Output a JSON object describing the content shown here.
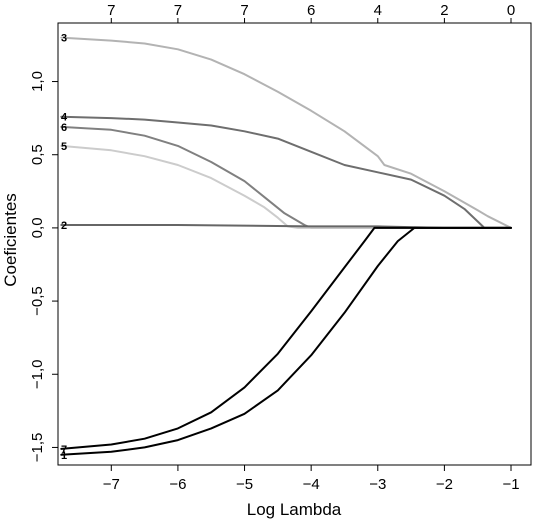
{
  "chart_data": {
    "type": "line",
    "title": "",
    "xlabel": "Log Lambda",
    "ylabel": "Coeficientes",
    "xlim": [
      -7.8,
      -0.7
    ],
    "ylim": [
      -1.62,
      1.4
    ],
    "x_ticks": [
      -7,
      -6,
      -5,
      -4,
      -3,
      -2,
      -1
    ],
    "x_tick_labels": [
      "−7",
      "−6",
      "−5",
      "−4",
      "−3",
      "−2",
      "−1"
    ],
    "y_ticks": [
      -1.5,
      -1.0,
      -0.5,
      0.0,
      0.5,
      1.0
    ],
    "y_tick_labels": [
      "−1,5",
      "−1,0",
      "−0,5",
      "0,0",
      "0,5",
      "1,0"
    ],
    "top_axis": {
      "ticks": [
        -7,
        -6,
        -5,
        -4,
        -3,
        -2,
        -1
      ],
      "labels": [
        "7",
        "7",
        "7",
        "6",
        "4",
        "2",
        "0"
      ]
    },
    "grid": false,
    "series": [
      {
        "name": "3",
        "color": "#b3b3b3",
        "x": [
          -7.75,
          -7.0,
          -6.5,
          -6.0,
          -5.5,
          -5.0,
          -4.5,
          -4.0,
          -3.5,
          -3.0,
          -2.9,
          -2.5,
          -2.0,
          -1.5,
          -1.35,
          -1.0
        ],
        "y": [
          1.3,
          1.28,
          1.26,
          1.22,
          1.15,
          1.05,
          0.93,
          0.8,
          0.66,
          0.49,
          0.43,
          0.37,
          0.25,
          0.12,
          0.08,
          0.0
        ]
      },
      {
        "name": "4",
        "color": "#6e6e6e",
        "x": [
          -7.75,
          -7.0,
          -6.5,
          -6.0,
          -5.5,
          -5.0,
          -4.5,
          -4.0,
          -3.5,
          -3.0,
          -2.5,
          -2.0,
          -1.7,
          -1.4,
          -1.0
        ],
        "y": [
          0.76,
          0.75,
          0.74,
          0.72,
          0.7,
          0.66,
          0.61,
          0.52,
          0.43,
          0.38,
          0.33,
          0.22,
          0.13,
          0.0,
          0.0
        ]
      },
      {
        "name": "6",
        "color": "#808080",
        "x": [
          -7.75,
          -7.0,
          -6.5,
          -6.0,
          -5.5,
          -5.0,
          -4.7,
          -4.4,
          -4.1,
          -4.0,
          -3.0,
          -2.0,
          -1.0
        ],
        "y": [
          0.69,
          0.67,
          0.63,
          0.56,
          0.45,
          0.32,
          0.21,
          0.1,
          0.02,
          0.0,
          0.0,
          0.0,
          0.0
        ]
      },
      {
        "name": "5",
        "color": "#cccccc",
        "x": [
          -7.75,
          -7.0,
          -6.5,
          -6.0,
          -5.5,
          -5.0,
          -4.7,
          -4.5,
          -4.35,
          -4.2,
          -3.0,
          -2.0,
          -1.0
        ],
        "y": [
          0.56,
          0.53,
          0.49,
          0.43,
          0.34,
          0.22,
          0.14,
          0.07,
          0.01,
          0.0,
          0.0,
          0.0,
          0.0
        ]
      },
      {
        "name": "2",
        "color": "#666666",
        "x": [
          -7.75,
          -6.0,
          -4.0,
          -3.0,
          -2.0,
          -1.0
        ],
        "y": [
          0.02,
          0.02,
          0.01,
          0.01,
          0.0,
          0.0
        ]
      },
      {
        "name": "7",
        "color": "#000000",
        "x": [
          -7.75,
          -7.0,
          -6.5,
          -6.0,
          -5.5,
          -5.0,
          -4.5,
          -4.0,
          -3.5,
          -3.2,
          -3.05,
          -3.0,
          -2.0,
          -1.0
        ],
        "y": [
          -1.51,
          -1.48,
          -1.44,
          -1.37,
          -1.26,
          -1.09,
          -0.86,
          -0.57,
          -0.27,
          -0.09,
          0.0,
          0.0,
          0.0,
          0.0
        ]
      },
      {
        "name": "1",
        "color": "#000000",
        "x": [
          -7.75,
          -7.0,
          -6.5,
          -6.0,
          -5.5,
          -5.0,
          -4.5,
          -4.0,
          -3.5,
          -3.0,
          -2.7,
          -2.45,
          -2.4,
          -2.0,
          -1.0
        ],
        "y": [
          -1.55,
          -1.53,
          -1.5,
          -1.45,
          -1.37,
          -1.27,
          -1.11,
          -0.87,
          -0.58,
          -0.26,
          -0.09,
          0.0,
          0.0,
          0.0,
          0.0
        ]
      }
    ]
  }
}
